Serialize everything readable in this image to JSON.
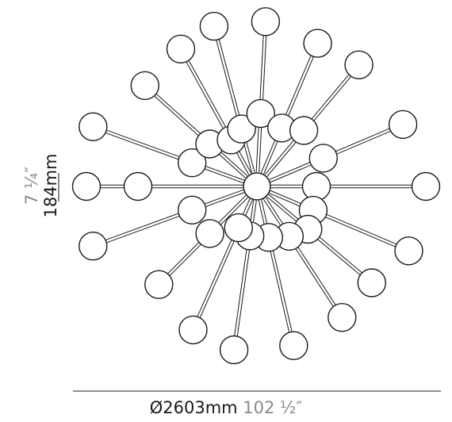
{
  "dimensions": {
    "diameter_metric": "Ø2603mm",
    "diameter_imperial": "102 ½″",
    "height_metric": "184mm",
    "height_imperial": "7 ¼″"
  },
  "colors": {
    "stroke": "#1a1a1a",
    "secondary_text": "#8a8a8a",
    "background": "#ffffff"
  }
}
